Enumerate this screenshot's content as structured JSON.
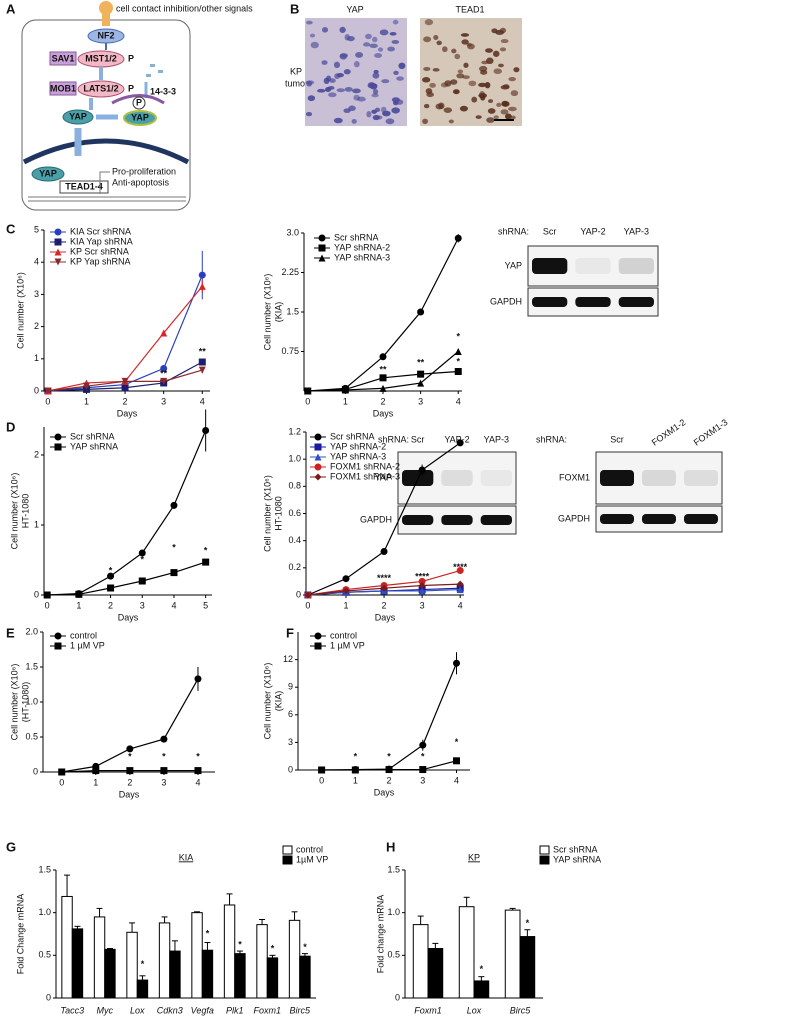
{
  "panel_labels": [
    "A",
    "B",
    "C",
    "D",
    "E",
    "F",
    "G",
    "H"
  ],
  "diagram": {
    "signal": "cell contact inhibition/other signals",
    "nf2": "NF2",
    "sav1": "SAV1",
    "mst": "MST1/2",
    "mob1": "MOB1",
    "lats": "LATS1/2",
    "p": "P",
    "yap": "YAP",
    "adaptor": "14-3-3",
    "tead": "TEAD1-4",
    "outcomes": [
      "Pro-proliferation",
      "Anti-apoptosis"
    ]
  },
  "histology": {
    "columns": [
      "YAP",
      "TEAD1"
    ],
    "row": [
      "KP",
      "tumors"
    ]
  },
  "blots": [
    {
      "lead": "shRNA:",
      "lanes": [
        "Scr",
        "YAP-2",
        "YAP-3"
      ],
      "rows": [
        "YAP",
        "GAPDH"
      ]
    },
    {
      "lead": "shRNA:",
      "lanes": [
        "Scr",
        "YAP-2",
        "YAP-3"
      ],
      "rows": [
        "YAP",
        "GAPDH"
      ]
    },
    {
      "lead": "shRNA:",
      "lanes": [
        "Scr",
        "FOXM1-2",
        "FOXM1-3"
      ],
      "rows": [
        "FOXM1",
        "GAPDH"
      ]
    }
  ],
  "chart_data": [
    {
      "type": "line",
      "xlabel": "Days",
      "ylabel": [
        "Cell number (X10⁶)"
      ],
      "x": [
        0,
        1,
        2,
        3,
        4
      ],
      "xlim": [
        -0.1,
        4.2
      ],
      "xticks": [
        0,
        1,
        2,
        3,
        4
      ],
      "ylim": [
        0,
        5
      ],
      "yticks": [
        0,
        1,
        2,
        3,
        4,
        5
      ],
      "series": [
        {
          "name": "KIA Scr shRNA",
          "color": "#2a3fbf",
          "marker": "circle",
          "values": [
            0,
            0.1,
            0.2,
            0.7,
            3.6
          ],
          "errors": [
            0,
            0,
            0,
            0.08,
            0.75
          ]
        },
        {
          "name": "KIA Yap shRNA",
          "color": "#1c1c70",
          "marker": "square",
          "values": [
            0,
            0.05,
            0.1,
            0.25,
            0.9
          ],
          "errors": [
            0,
            0,
            0,
            0.05,
            0.1
          ]
        },
        {
          "name": "KP Scr shRNA",
          "color": "#d62728",
          "marker": "triangle",
          "values": [
            0,
            0.25,
            0.3,
            1.8,
            3.25
          ],
          "errors": [
            0,
            0,
            0,
            0.08,
            0.2
          ]
        },
        {
          "name": "KP Yap shRNA",
          "color": "#8b2a2a",
          "marker": "down",
          "values": [
            0,
            0.15,
            0.3,
            0.3,
            0.65
          ],
          "errors": [
            0,
            0,
            0,
            0.03,
            0.1
          ]
        }
      ],
      "annotations": [
        {
          "text": "**",
          "x": 4,
          "y": 1.2
        },
        {
          "text": "**",
          "x": 3,
          "y": 0.53
        }
      ]
    },
    {
      "type": "line",
      "xlabel": "Days",
      "ylabel": [
        "Cell number (X10⁶)",
        "(KIA)"
      ],
      "x": [
        0,
        1,
        2,
        3,
        4
      ],
      "xlim": [
        -0.1,
        4.1
      ],
      "xticks": [
        0,
        1,
        2,
        3,
        4
      ],
      "ylim": [
        0,
        3
      ],
      "yticks": [
        0.75,
        1.5,
        2.25,
        {
          "value": 3,
          "label": "3.0"
        }
      ],
      "series": [
        {
          "name": "Scr shRNA",
          "color": "#000000",
          "marker": "circle",
          "values": [
            0,
            0.05,
            0.65,
            1.5,
            2.9
          ],
          "errors": [
            0,
            0,
            0.05,
            0.02,
            0.08
          ]
        },
        {
          "name": "YAP shRNA-2",
          "color": "#000000",
          "marker": "square",
          "values": [
            0,
            0.03,
            0.25,
            0.32,
            0.37
          ],
          "errors": [
            0,
            0,
            0.02,
            0.02,
            0.02
          ]
        },
        {
          "name": "YAP shRNA-3",
          "color": "#000000",
          "marker": "triangle",
          "values": [
            0,
            0.02,
            0.05,
            0.15,
            0.75
          ],
          "errors": [
            0,
            0,
            0,
            0.02,
            0.03
          ]
        }
      ],
      "annotations": [
        {
          "text": "**",
          "x": 2,
          "y": 0.4
        },
        {
          "text": "**",
          "x": 3,
          "y": 0.53
        },
        {
          "text": "*",
          "x": 4,
          "y": 1.02
        },
        {
          "text": "*",
          "x": 4,
          "y": 0.55
        }
      ]
    },
    {
      "type": "line",
      "xlabel": "Days",
      "ylabel": [
        "Cell number (X10⁶)",
        "HT-1080"
      ],
      "x": [
        0,
        1,
        2,
        3,
        4,
        5
      ],
      "xlim": [
        -0.1,
        5.2
      ],
      "xticks": [
        0,
        1,
        2,
        3,
        4,
        5
      ],
      "ylim": [
        0,
        2.4
      ],
      "yticks": [
        0,
        1,
        2
      ],
      "series": [
        {
          "name": "Scr shRNA",
          "color": "#000000",
          "marker": "circle",
          "values": [
            0,
            0.02,
            0.27,
            0.6,
            1.28,
            2.35
          ],
          "errors": [
            0,
            0,
            0.02,
            0.02,
            0.05,
            0.3
          ]
        },
        {
          "name": "YAP shRNA",
          "color": "#000000",
          "marker": "square",
          "values": [
            0,
            0.01,
            0.1,
            0.2,
            0.32,
            0.47
          ],
          "errors": [
            0,
            0,
            0,
            0.01,
            0.02,
            0.02
          ]
        }
      ],
      "annotations": [
        {
          "text": "*",
          "x": 2,
          "y": 0.34
        },
        {
          "text": "*",
          "x": 3,
          "y": 0.5
        },
        {
          "text": "*",
          "x": 4,
          "y": 0.67
        },
        {
          "text": "*",
          "x": 5,
          "y": 0.63
        }
      ]
    },
    {
      "type": "line",
      "xlabel": "Days",
      "ylabel": [
        "Cell number (X10⁶)",
        "HT-1080"
      ],
      "x": [
        0,
        1,
        2,
        3,
        4
      ],
      "xlim": [
        -0.05,
        4.1
      ],
      "xticks": [
        0,
        1,
        2,
        3,
        4
      ],
      "ylim": [
        0,
        1.2
      ],
      "yticks": [
        0,
        0.2,
        0.4,
        0.6,
        0.8,
        {
          "value": 1,
          "label": "1.0"
        },
        1.2
      ],
      "series": [
        {
          "name": "Scr shRNA",
          "color": "#000000",
          "marker": "circle",
          "values": [
            0,
            0.12,
            0.32,
            0.92,
            1.12
          ],
          "errors": [
            0,
            0,
            0.01,
            0.04,
            0.02
          ]
        },
        {
          "name": "YAP shRNA-2",
          "color": "#1a1aa0",
          "marker": "square",
          "values": [
            0,
            0.02,
            0.03,
            0.04,
            0.05
          ]
        },
        {
          "name": "YAP shRNA-3",
          "color": "#3050c0",
          "marker": "triangle",
          "values": [
            0,
            0.02,
            0.03,
            0.03,
            0.04
          ]
        },
        {
          "name": "FOXM1 shRNA-2",
          "color": "#cc2222",
          "marker": "circle",
          "values": [
            0,
            0.04,
            0.07,
            0.1,
            0.18
          ]
        },
        {
          "name": "FOXM1 shRNA-3",
          "color": "#7a1a1a",
          "marker": "diamond",
          "values": [
            0,
            0.03,
            0.05,
            0.07,
            0.08
          ]
        }
      ],
      "annotations": [
        {
          "text": "****",
          "x": 2,
          "y": 0.12
        },
        {
          "text": "****",
          "x": 3,
          "y": 0.13
        },
        {
          "text": "****",
          "x": 4,
          "y": 0.2
        }
      ]
    },
    {
      "type": "line",
      "xlabel": "Days",
      "ylabel": [
        "Cell number (X10⁶)",
        "(HT-1080)"
      ],
      "x": [
        0,
        1,
        2,
        3,
        4
      ],
      "xlim": [
        -0.55,
        4.5
      ],
      "xticks": [
        0,
        1,
        2,
        3,
        4
      ],
      "ylim": [
        0,
        2
      ],
      "yticks": [
        0,
        0.5,
        {
          "value": 1,
          "label": "1.0"
        },
        1.5,
        {
          "value": 2,
          "label": "2.0"
        }
      ],
      "series": [
        {
          "name": "control",
          "color": "#000000",
          "marker": "circle",
          "values": [
            0,
            0.08,
            0.33,
            0.47,
            1.33
          ],
          "errors": [
            0,
            0.02,
            0.02,
            0.02,
            0.17
          ]
        },
        {
          "name": "1 µM VP",
          "color": "#000000",
          "marker": "square",
          "values": [
            0,
            0.02,
            0.02,
            0.02,
            0.02
          ]
        }
      ],
      "annotations": [
        {
          "text": "*",
          "x": 2,
          "y": 0.21
        },
        {
          "text": "*",
          "x": 3,
          "y": 0.21
        },
        {
          "text": "*",
          "x": 4,
          "y": 0.21
        }
      ]
    },
    {
      "type": "line",
      "xlabel": "Days",
      "ylabel": [
        "Cell number (X10⁶)",
        "(KIA)"
      ],
      "x": [
        0,
        1,
        2,
        3,
        4
      ],
      "xlim": [
        -0.7,
        4.4
      ],
      "xticks": [
        0,
        1,
        2,
        3,
        4
      ],
      "ylim": [
        0,
        15
      ],
      "yticks": [
        0,
        3,
        6,
        9,
        12
      ],
      "series": [
        {
          "name": "control",
          "color": "#000000",
          "marker": "circle",
          "values": [
            0,
            0.05,
            0.1,
            2.7,
            11.6
          ],
          "errors": [
            0,
            0,
            0.05,
            0.6,
            1.2
          ]
        },
        {
          "name": "1 µM VP",
          "color": "#000000",
          "marker": "square",
          "values": [
            0,
            0,
            0.05,
            0.05,
            1
          ]
        }
      ],
      "annotations": [
        {
          "text": "*",
          "x": 1,
          "y": 1.4
        },
        {
          "text": "*",
          "x": 2,
          "y": 1.4
        },
        {
          "text": "*",
          "x": 3,
          "y": 1.4
        },
        {
          "text": "*",
          "x": 4,
          "y": 3
        }
      ]
    },
    {
      "type": "bar",
      "title": "KIA",
      "ylabel": [
        "Fold Change mRNA"
      ],
      "categories": [
        "Tacc3",
        "Myc",
        "Lox",
        "Cdkn3",
        "Vegfa",
        "Plk1",
        "Foxm1",
        "Birc5"
      ],
      "ylim": [
        0,
        1.5
      ],
      "yticks": [
        0,
        0.5,
        {
          "value": 1,
          "label": "1.0"
        },
        1.5
      ],
      "series": [
        {
          "name": "control",
          "color": "#ffffff",
          "values": [
            1.19,
            0.95,
            0.77,
            0.88,
            1.0,
            1.09,
            0.86,
            0.91
          ],
          "errors": [
            0.25,
            0.1,
            0.11,
            0.07,
            0.01,
            0.13,
            0.06,
            0.1
          ]
        },
        {
          "name": "1µM VP",
          "color": "#000000",
          "values": [
            0.81,
            0.57,
            0.21,
            0.55,
            0.56,
            0.52,
            0.47,
            0.49
          ],
          "errors": [
            0.03,
            0.01,
            0.05,
            0.12,
            0.09,
            0.03,
            0.03,
            0.03
          ]
        }
      ],
      "annotations": [
        {
          "text": "*",
          "x": "Lox",
          "y": 0.39
        },
        {
          "text": "*",
          "x": "Vegfa",
          "y": 0.75
        },
        {
          "text": "*",
          "x": "Plk1",
          "y": 0.62
        },
        {
          "text": "*",
          "x": "Foxm1",
          "y": 0.57
        },
        {
          "text": "*",
          "x": "Birc5",
          "y": 0.59
        }
      ]
    },
    {
      "type": "bar",
      "title": "KP",
      "ylabel": [
        "Fold change mRNA"
      ],
      "categories": [
        "Foxm1",
        "Lox",
        "Birc5"
      ],
      "ylim": [
        0,
        1.5
      ],
      "yticks": [
        0,
        0.5,
        {
          "value": 1,
          "label": "1.0"
        },
        1.5
      ],
      "series": [
        {
          "name": "Scr shRNA",
          "color": "#ffffff",
          "values": [
            0.86,
            1.07,
            1.03
          ],
          "errors": [
            0.1,
            0.11,
            0.02
          ]
        },
        {
          "name": "YAP shRNA",
          "color": "#000000",
          "values": [
            0.58,
            0.2,
            0.72
          ],
          "errors": [
            0.06,
            0.05,
            0.08
          ]
        }
      ],
      "annotations": [
        {
          "text": "*",
          "x": "Lox",
          "y": 0.33
        },
        {
          "text": "*",
          "x": "Birc5",
          "y": 0.87
        }
      ]
    }
  ]
}
